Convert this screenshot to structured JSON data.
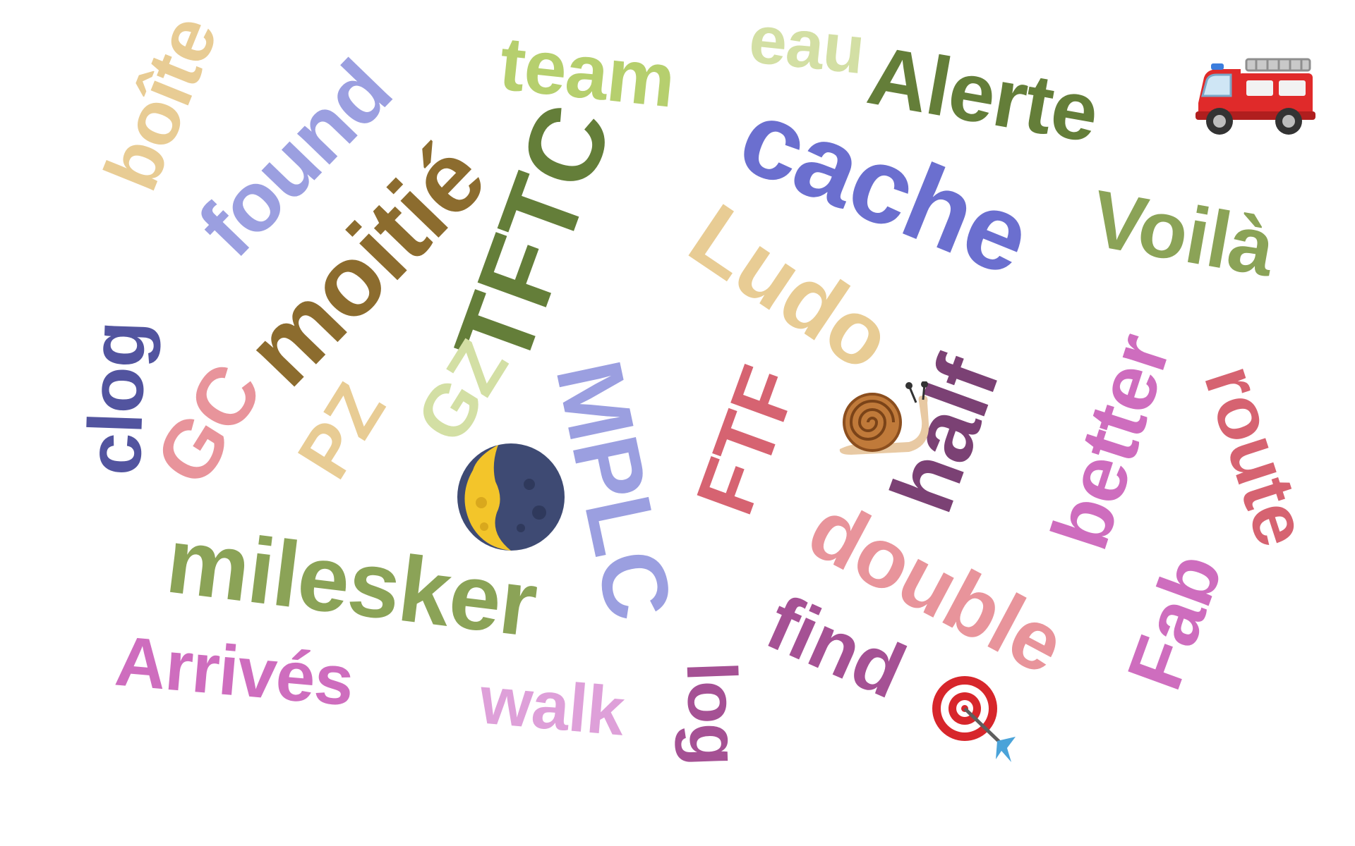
{
  "words": [
    {
      "text": "boîte",
      "color": "#e8cc94"
    },
    {
      "text": "found",
      "color": "#9b9fe0"
    },
    {
      "text": "moitié",
      "color": "#8c6c2e"
    },
    {
      "text": "team",
      "color": "#b6cf6e"
    },
    {
      "text": "eau",
      "color": "#d3dfa4"
    },
    {
      "text": "Alerte",
      "color": "#647e39"
    },
    {
      "text": "cache",
      "color": "#6b6fcf"
    },
    {
      "text": "TFTC",
      "color": "#647e39"
    },
    {
      "text": "Voilà",
      "color": "#8ba357"
    },
    {
      "text": "Ludo",
      "color": "#e8cc94"
    },
    {
      "text": "clog",
      "color": "#52549f"
    },
    {
      "text": "GC",
      "color": "#e8949b"
    },
    {
      "text": "PZ",
      "color": "#e8cc94"
    },
    {
      "text": "GZ",
      "color": "#d3dfa4"
    },
    {
      "text": "MPLC",
      "color": "#9b9fe0"
    },
    {
      "text": "FTF",
      "color": "#d66371"
    },
    {
      "text": "half",
      "color": "#7b4174"
    },
    {
      "text": "better",
      "color": "#ce6dbe"
    },
    {
      "text": "route",
      "color": "#d66371"
    },
    {
      "text": "milesker",
      "color": "#8ba357"
    },
    {
      "text": "double",
      "color": "#e8949b"
    },
    {
      "text": "find",
      "color": "#a55194"
    },
    {
      "text": "Fab",
      "color": "#ce6dbe"
    },
    {
      "text": "Arrivés",
      "color": "#ce6dbe"
    },
    {
      "text": "walk",
      "color": "#dea0d9"
    },
    {
      "text": "log",
      "color": "#a55194"
    }
  ],
  "emojis": [
    {
      "name": "fire-engine-icon"
    },
    {
      "name": "snail-icon"
    },
    {
      "name": "moon-icon"
    },
    {
      "name": "direct-hit-icon"
    }
  ]
}
